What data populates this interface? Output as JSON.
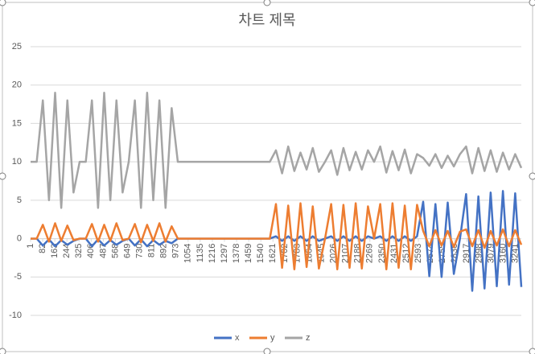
{
  "chart_data": {
    "type": "line",
    "title": "차트 제목",
    "x": [
      1,
      42,
      83,
      124,
      165,
      206,
      247,
      288,
      329,
      370,
      411,
      452,
      493,
      534,
      575,
      616,
      657,
      698,
      739,
      780,
      821,
      862,
      903,
      944,
      985,
      1026,
      1067,
      1108,
      1149,
      1190,
      1231,
      1272,
      1313,
      1354,
      1395,
      1436,
      1477,
      1518,
      1559,
      1600,
      1641,
      1682,
      1723,
      1764,
      1805,
      1846,
      1887,
      1928,
      1969,
      2010,
      2051,
      2092,
      2133,
      2174,
      2215,
      2256,
      2297,
      2338,
      2379,
      2420,
      2461,
      2502,
      2543,
      2584,
      2625,
      2666,
      2707,
      2748,
      2789,
      2830,
      2871,
      2912,
      2953,
      2994,
      3035,
      3076,
      3117,
      3158,
      3199,
      3240,
      3281
    ],
    "series": [
      {
        "name": "x",
        "color": "#4472c4",
        "values": [
          0,
          0,
          -0.9,
          -0.1,
          -1,
          -0.2,
          -0.8,
          -0.3,
          0,
          0,
          -1,
          -0.1,
          -0.9,
          -0.2,
          -0.8,
          -0.3,
          0,
          -0.9,
          -0.1,
          -1,
          -0.2,
          -0.8,
          -0.3,
          -0.6,
          0,
          0,
          0,
          0,
          0,
          0,
          0,
          0,
          0,
          0,
          0,
          0,
          0,
          0,
          0,
          0,
          0.3,
          -0.3,
          0.3,
          -0.3,
          0.3,
          -0.3,
          0.3,
          -0.3,
          0,
          0.3,
          -0.3,
          0.3,
          -0.3,
          0.3,
          -0.3,
          0.3,
          0,
          0.3,
          -0.3,
          0.3,
          -0.3,
          0.3,
          -0.3,
          0.3,
          4.8,
          -4.9,
          4.5,
          -5,
          4.7,
          -4.6,
          0,
          5.8,
          -6.8,
          5.5,
          -6.5,
          6,
          -6.2,
          6.2,
          -6,
          5.9,
          -6.3
        ]
      },
      {
        "name": "y",
        "color": "#ed7d31",
        "values": [
          0,
          0,
          1.8,
          -0.4,
          2,
          -0.3,
          1.7,
          -0.2,
          0,
          0,
          1.9,
          -0.4,
          1.8,
          -0.3,
          2,
          -0.2,
          0,
          1.9,
          -0.5,
          1.8,
          -0.3,
          2,
          -0.4,
          1.6,
          0,
          0,
          0,
          0,
          0,
          0,
          0,
          0,
          0,
          0,
          0,
          0,
          0,
          0,
          0,
          0,
          4.5,
          -3.8,
          4.3,
          -4,
          4.6,
          -3.7,
          4.2,
          -3.9,
          0,
          4.5,
          -4,
          4.4,
          -3.8,
          4.6,
          -3.9,
          4.2,
          0,
          4.5,
          -4,
          4.6,
          -3.8,
          4.3,
          -4,
          4.4,
          1,
          -1,
          1.1,
          -0.9,
          1,
          -1.1,
          0.9,
          1.2,
          -1,
          1.1,
          -1.2,
          1,
          -0.9,
          1.2,
          -1,
          1.1,
          -0.8
        ]
      },
      {
        "name": "z",
        "color": "#a5a5a5",
        "values": [
          10,
          10,
          18,
          5,
          19,
          4,
          18,
          6,
          10,
          10,
          18,
          4,
          19,
          5,
          18,
          6,
          10,
          18,
          4,
          19,
          5,
          18,
          4,
          17,
          10,
          10,
          10,
          10,
          10,
          10,
          10,
          10,
          10,
          10,
          10,
          10,
          10,
          10,
          10,
          10,
          11.5,
          8.5,
          12,
          8.8,
          11.2,
          9,
          11.8,
          8.7,
          10,
          11.5,
          8.3,
          11.8,
          8.9,
          11.3,
          9,
          11.5,
          10,
          12,
          8.6,
          11.4,
          8.9,
          11.6,
          8.5,
          11,
          10.5,
          9.5,
          11,
          9.2,
          10.8,
          9.4,
          11,
          12,
          8.5,
          11.8,
          8.8,
          11.5,
          8.7,
          11.2,
          9,
          11,
          9.2
        ]
      }
    ],
    "xlim": [
      1,
      3281
    ],
    "xticks": [
      1,
      82,
      163,
      244,
      325,
      406,
      487,
      568,
      649,
      730,
      811,
      892,
      973,
      1054,
      1135,
      1216,
      1297,
      1378,
      1459,
      1540,
      1621,
      1702,
      1783,
      1864,
      1945,
      2026,
      2107,
      2188,
      2269,
      2350,
      2431,
      2512,
      2593,
      2674,
      2755,
      2836,
      2917,
      2998,
      3079,
      3160,
      3241
    ],
    "ylim": [
      -10,
      25
    ],
    "yticks": [
      -10,
      -5,
      0,
      5,
      10,
      15,
      20,
      25
    ],
    "grid": true,
    "legend": "bottom"
  }
}
